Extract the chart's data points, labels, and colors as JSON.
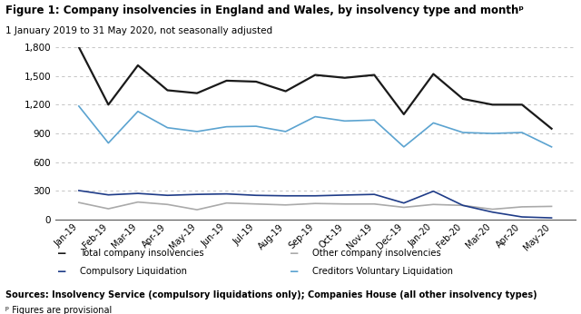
{
  "title": "Figure 1: Company insolvencies in England and Wales, by insolvency type and monthᵖ",
  "subtitle": "1 January 2019 to 31 May 2020, not seasonally adjusted",
  "months": [
    "Jan-19",
    "Feb-19",
    "Mar-19",
    "Apr-19",
    "May-19",
    "Jun-19",
    "Jul-19",
    "Aug-19",
    "Sep-19",
    "Oct-19",
    "Nov-19",
    "Dec-19",
    "Jan-20",
    "Feb-20",
    "Mar-20",
    "Apr-20",
    "May-20"
  ],
  "total_insolvencies": [
    1800,
    1200,
    1610,
    1350,
    1320,
    1450,
    1440,
    1340,
    1510,
    1480,
    1510,
    1100,
    1520,
    1260,
    1200,
    1200,
    950
  ],
  "other_insolvencies": [
    180,
    115,
    185,
    160,
    105,
    175,
    165,
    155,
    170,
    165,
    165,
    130,
    160,
    150,
    110,
    135,
    140
  ],
  "compulsory_liquidation": [
    305,
    260,
    275,
    255,
    265,
    270,
    255,
    250,
    250,
    258,
    265,
    175,
    298,
    150,
    80,
    30,
    20
  ],
  "creditors_vol_liquidation": [
    1185,
    800,
    1130,
    960,
    920,
    970,
    975,
    920,
    1075,
    1030,
    1040,
    760,
    1010,
    910,
    900,
    910,
    760
  ],
  "total_color": "#1a1a1a",
  "other_color": "#aaaaaa",
  "compulsory_color": "#1f3c88",
  "cvl_color": "#5ba3d0",
  "ylim": [
    0,
    1800
  ],
  "yticks": [
    0,
    300,
    600,
    900,
    1200,
    1500,
    1800
  ],
  "sources_text": "Sources: Insolvency Service (compulsory liquidations only); Companies House (all other insolvency types)",
  "footnote_text": "ᵖ Figures are provisional",
  "legend": [
    {
      "label": "Total company insolvencies",
      "color": "#1a1a1a"
    },
    {
      "label": "Other company insolvencies",
      "color": "#aaaaaa"
    },
    {
      "label": "Compulsory Liquidation",
      "color": "#1f3c88"
    },
    {
      "label": "Creditors Voluntary Liquidation",
      "color": "#5ba3d0"
    }
  ]
}
